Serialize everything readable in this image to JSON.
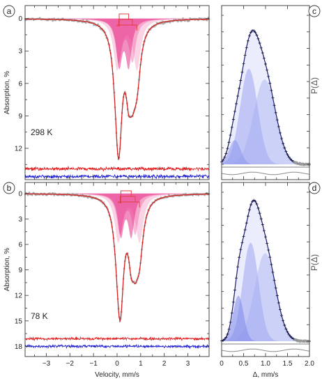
{
  "chart_data": [
    {
      "panel": "a",
      "type": "line",
      "title": "",
      "temperature": "298 K",
      "xlabel": "Velocity, mm/s",
      "ylabel": "Absorption, %",
      "xlim": [
        -3.9,
        3.9
      ],
      "ylim": [
        14.9,
        -1.2
      ],
      "y_inverted": true,
      "xticks": [
        -3,
        -2,
        -1,
        0,
        1,
        2,
        3
      ],
      "xtick_labels": [
        "",
        "",
        "",
        "",
        "",
        "",
        ""
      ],
      "yticks": [
        0,
        3,
        6,
        9,
        12
      ],
      "ytick_labels": [
        "0",
        "3",
        "6",
        "9",
        "12"
      ],
      "doublets": [
        {
          "center": 0.29,
          "splitting": 0.4,
          "width": 0.3,
          "depth": 4.2,
          "color": "#e8318a",
          "alpha": 0.55
        },
        {
          "center": 0.36,
          "splitting": 0.58,
          "width": 0.34,
          "depth": 3.8,
          "color": "#f06aa8",
          "alpha": 0.45
        },
        {
          "center": 0.42,
          "splitting": 0.84,
          "width": 0.38,
          "depth": 4.6,
          "color": "#f59fc6",
          "alpha": 0.45
        }
      ],
      "series": [
        {
          "kind": "experimental",
          "color": "#9a9a9a"
        },
        {
          "kind": "fit",
          "color": "#d42020"
        }
      ],
      "residuals": [
        {
          "baseline": 13.9,
          "color": "#e02020"
        },
        {
          "baseline": 14.6,
          "color": "#2020d0"
        }
      ]
    },
    {
      "panel": "b",
      "type": "line",
      "title": "",
      "temperature": "78 K",
      "xlabel": "Velocity, mm/s",
      "ylabel": "Absorption, %",
      "xlim": [
        -3.9,
        3.9
      ],
      "ylim": [
        19.2,
        -1.3
      ],
      "y_inverted": true,
      "xticks": [
        -3,
        -2,
        -1,
        0,
        1,
        2,
        3
      ],
      "xtick_labels": [
        "−3",
        "−2",
        "−1",
        "0",
        "1",
        "2",
        "3"
      ],
      "yticks": [
        0,
        3,
        6,
        9,
        12,
        15,
        18
      ],
      "ytick_labels": [
        "0",
        "3",
        "6",
        "9",
        "12",
        "15",
        "18"
      ],
      "doublets": [
        {
          "center": 0.38,
          "splitting": 0.44,
          "width": 0.3,
          "depth": 4.8,
          "color": "#e8318a",
          "alpha": 0.55
        },
        {
          "center": 0.45,
          "splitting": 0.64,
          "width": 0.34,
          "depth": 4.6,
          "color": "#f06aa8",
          "alpha": 0.45
        },
        {
          "center": 0.5,
          "splitting": 0.9,
          "width": 0.38,
          "depth": 5.6,
          "color": "#f59fc6",
          "alpha": 0.45
        }
      ],
      "series": [
        {
          "kind": "experimental",
          "color": "#9a9a9a"
        },
        {
          "kind": "fit",
          "color": "#d42020"
        }
      ],
      "residuals": [
        {
          "baseline": 17.1,
          "color": "#e02020"
        },
        {
          "baseline": 18.0,
          "color": "#2020d0"
        }
      ]
    },
    {
      "panel": "c",
      "type": "area",
      "title": "",
      "xlabel": "",
      "ylabel": "P(Δ)",
      "xlim": [
        0,
        2.0
      ],
      "xticks": [
        0,
        0.5,
        1.0,
        1.5,
        2.0
      ],
      "xtick_labels": [
        "",
        "",
        "",
        "",
        ""
      ],
      "components": [
        {
          "center": 0.3,
          "sigma": 0.13,
          "amplitude": 0.16,
          "color": "#6f7ae8"
        },
        {
          "center": 0.62,
          "sigma": 0.2,
          "amplitude": 0.63,
          "color": "#8a94ee"
        },
        {
          "center": 0.98,
          "sigma": 0.25,
          "amplitude": 0.56,
          "color": "#aab1f3"
        }
      ],
      "series": [
        {
          "kind": "total",
          "color": "#1a1a6e"
        }
      ]
    },
    {
      "panel": "d",
      "type": "area",
      "title": "",
      "xlabel": "Δ, mm/s",
      "ylabel": "P(Δ)",
      "xlim": [
        0,
        2.0
      ],
      "xticks": [
        0,
        0.5,
        1.0,
        1.5,
        2.0
      ],
      "xtick_labels": [
        "0",
        "0.5",
        "1.0",
        "1.5",
        "2.0"
      ],
      "components": [
        {
          "center": 0.38,
          "sigma": 0.12,
          "amplitude": 0.3,
          "color": "#5a66e2"
        },
        {
          "center": 0.66,
          "sigma": 0.18,
          "amplitude": 0.65,
          "color": "#8a94ee"
        },
        {
          "center": 0.99,
          "sigma": 0.24,
          "amplitude": 0.58,
          "color": "#aab1f3"
        }
      ],
      "series": [
        {
          "kind": "total",
          "color": "#1a1a6e"
        }
      ]
    }
  ]
}
